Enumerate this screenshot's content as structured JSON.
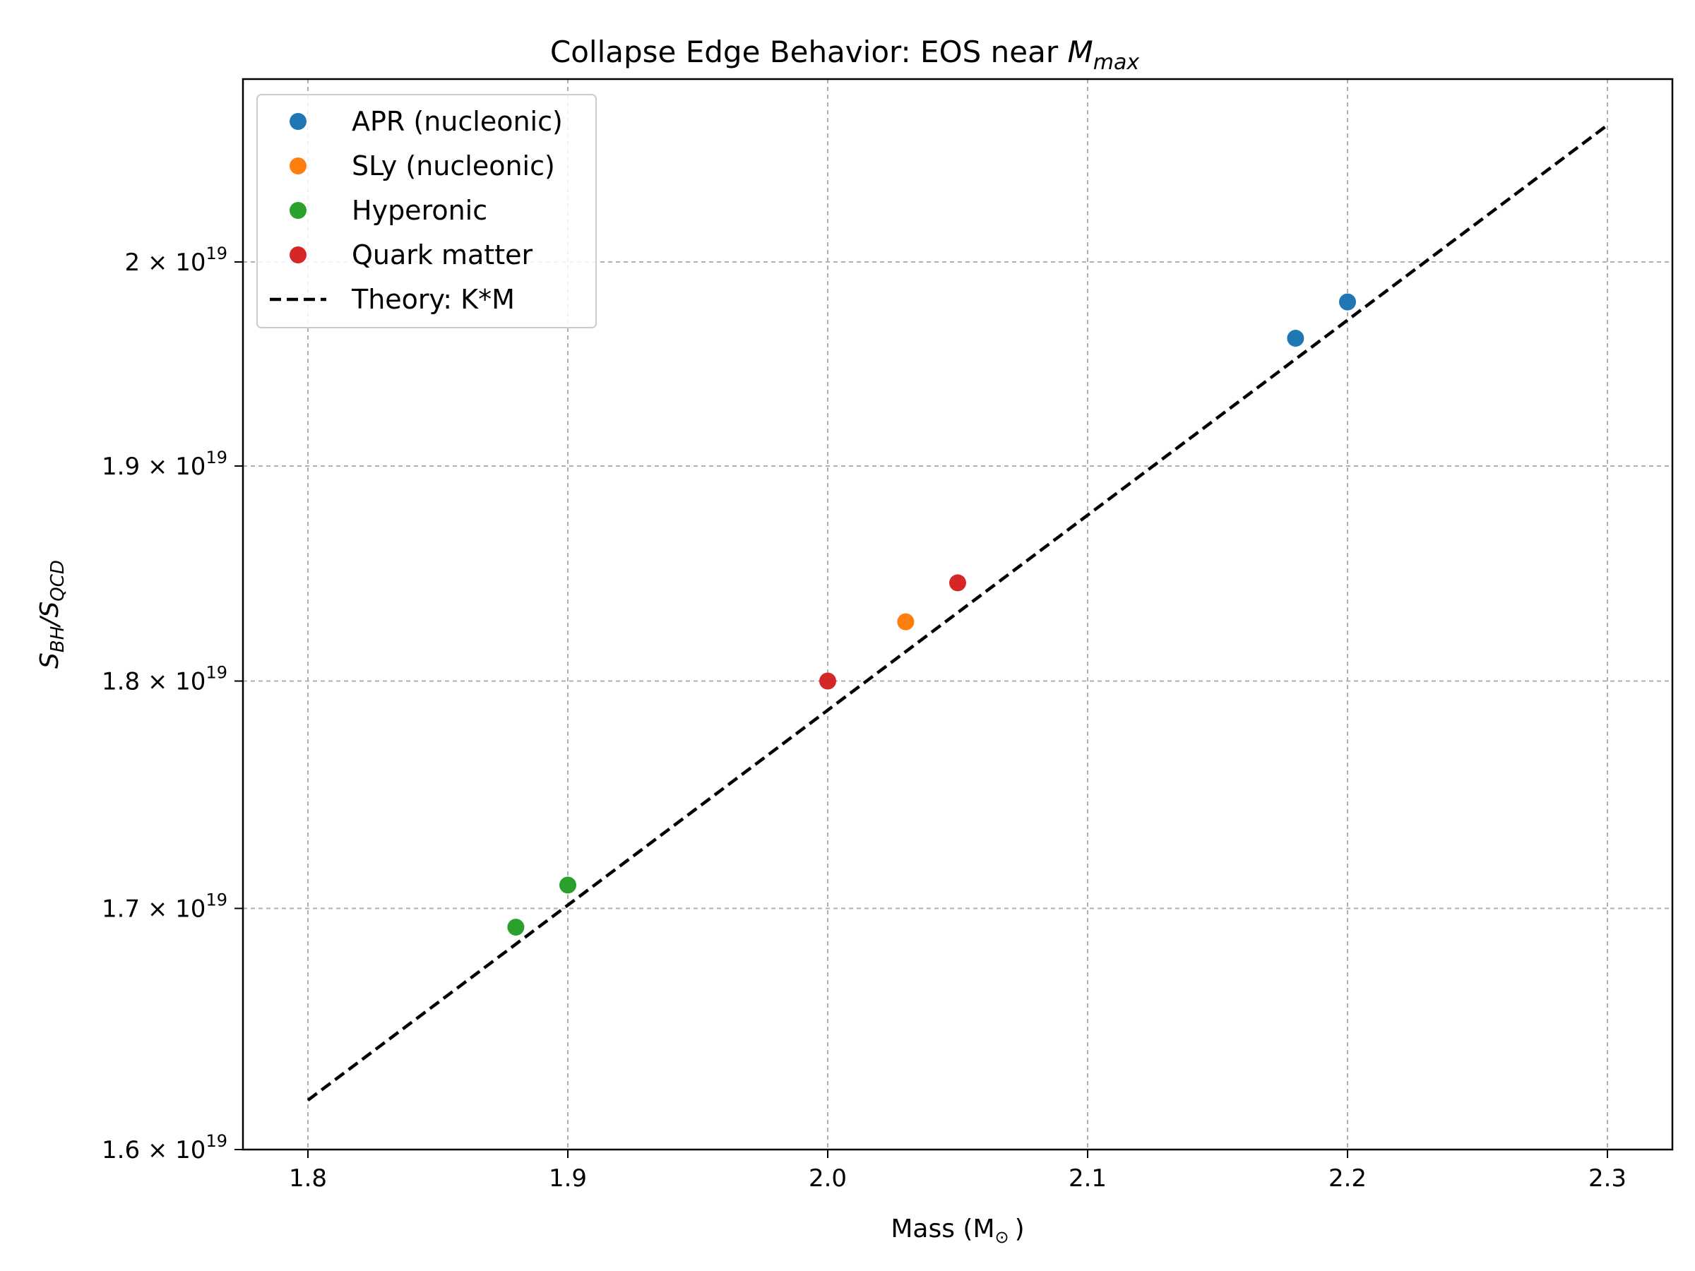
{
  "chart_data": {
    "type": "scatter",
    "title": "Collapse Edge Behavior: EOS near ",
    "title_math": {
      "base": "M",
      "sub": "max"
    },
    "xlabel": "Mass (M",
    "xlabel_symbol": "⊙",
    "xlabel_close": ")",
    "ylabel": {
      "s1": "S",
      "sub1": "BH",
      "sep": "/",
      "s2": "S",
      "sub2": "QCD"
    },
    "xlim": [
      1.775,
      2.325
    ],
    "ylim": [
      1.6e+19,
      2.07e+19
    ],
    "y_scale": "log",
    "grid": true,
    "legend_position": "upper-left",
    "x_ticks": [
      "1.8",
      "1.9",
      "2.0",
      "2.1",
      "2.2",
      "2.3"
    ],
    "y_ticks": [
      {
        "mantissa": "1.6",
        "exp": "19",
        "value": 1.6e+19
      },
      {
        "mantissa": "1.7",
        "exp": "19",
        "value": 1.7e+19
      },
      {
        "mantissa": "1.8",
        "exp": "19",
        "value": 1.8e+19
      },
      {
        "mantissa": "1.9",
        "exp": "19",
        "value": 1.9e+19
      },
      {
        "mantissa": "2",
        "exp": "19",
        "value": 2e+19
      }
    ],
    "series": [
      {
        "name": "APR (nucleonic)",
        "color": "#1f77b4",
        "x": [
          2.18,
          2.2
        ],
        "y": [
          1.962e+19,
          1.98e+19
        ]
      },
      {
        "name": "SLy (nucleonic)",
        "color": "#ff7f0e",
        "x": [
          2.03
        ],
        "y": [
          1.827e+19
        ]
      },
      {
        "name": "Hyperonic",
        "color": "#2ca02c",
        "x": [
          1.88,
          1.9
        ],
        "y": [
          1.692e+19,
          1.71e+19
        ]
      },
      {
        "name": "Quark matter",
        "color": "#d62728",
        "x": [
          2.0,
          2.05
        ],
        "y": [
          1.8e+19,
          1.845e+19
        ]
      }
    ],
    "theory": {
      "name": "Theory: K*M",
      "color": "#000000",
      "x": [
        1.8,
        2.3
      ],
      "y": [
        1.62e+19,
        2.07e+19
      ]
    }
  }
}
